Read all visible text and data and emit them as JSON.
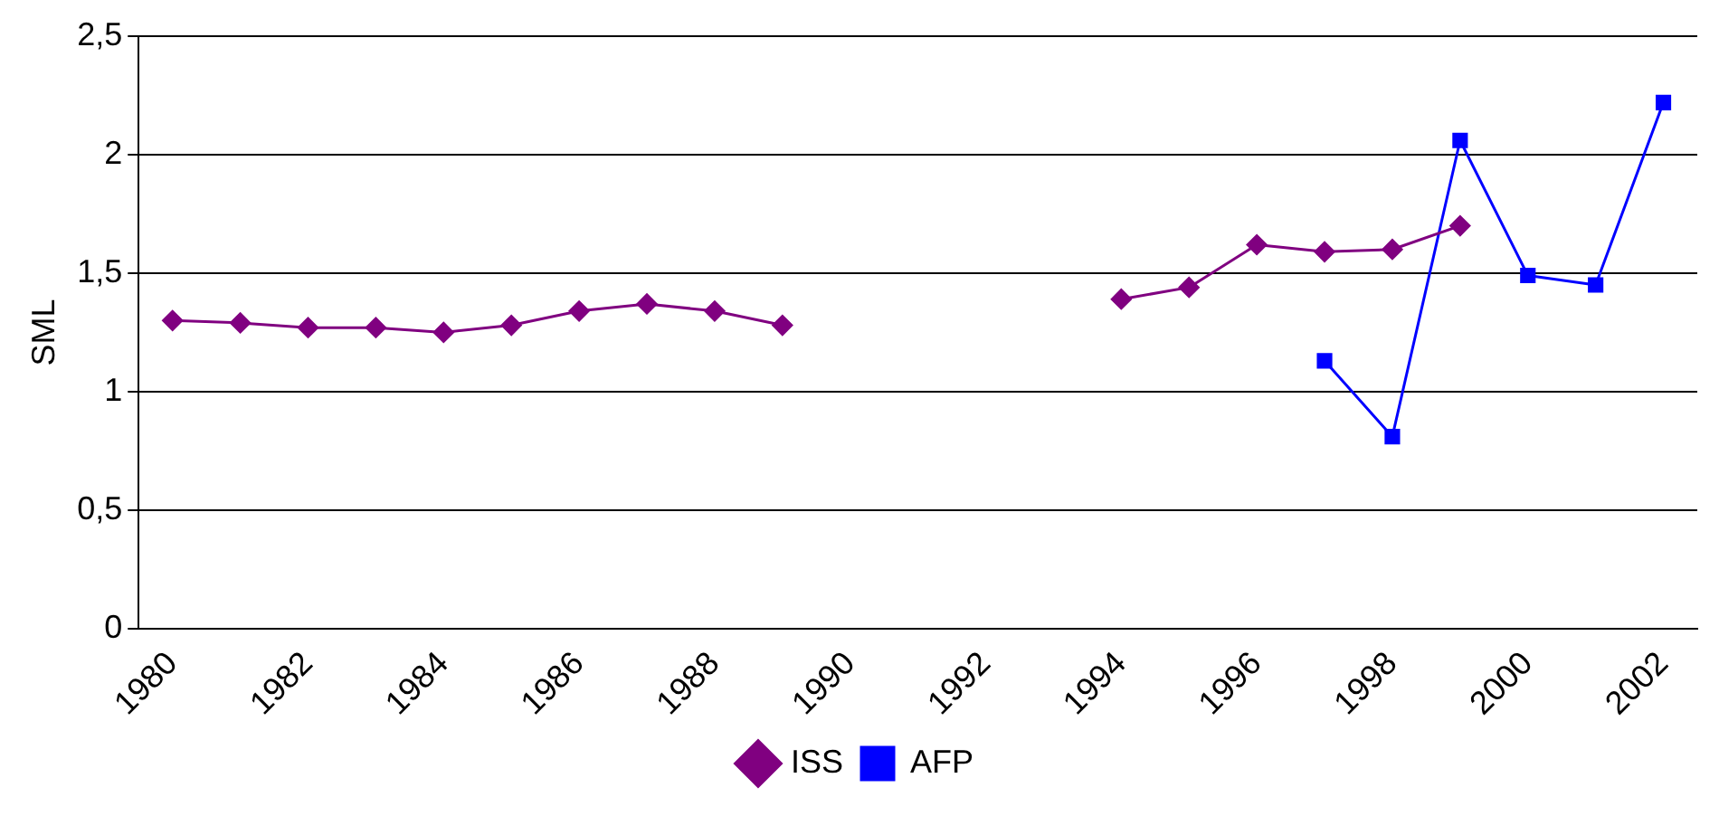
{
  "chart_data": {
    "type": "line",
    "ylabel": "SML",
    "categories": [
      "1980",
      null,
      "1982",
      null,
      "1984",
      null,
      "1986",
      null,
      "1988",
      null,
      "1990",
      null,
      "1992",
      null,
      "1994",
      null,
      "1996",
      null,
      "1998",
      null,
      "2000",
      null,
      "2002"
    ],
    "series": [
      {
        "name": "ISS",
        "color": "#800080",
        "marker": "diamond",
        "values": [
          1.3,
          1.29,
          1.27,
          1.27,
          1.25,
          1.28,
          1.34,
          1.37,
          1.34,
          1.28,
          null,
          null,
          null,
          null,
          1.39,
          1.44,
          1.62,
          1.59,
          1.6,
          1.7,
          null,
          null,
          null
        ]
      },
      {
        "name": "AFP",
        "color": "#0000ff",
        "marker": "square",
        "values": [
          null,
          null,
          null,
          null,
          null,
          null,
          null,
          null,
          null,
          null,
          null,
          null,
          null,
          null,
          null,
          null,
          null,
          1.13,
          0.81,
          2.06,
          1.49,
          1.45,
          2.22
        ]
      }
    ],
    "ylim": [
      0,
      2.5
    ],
    "yticks": [
      {
        "value": 0,
        "label": "0"
      },
      {
        "value": 0.5,
        "label": "0,5"
      },
      {
        "value": 1,
        "label": "1"
      },
      {
        "value": 1.5,
        "label": "1,5"
      },
      {
        "value": 2,
        "label": "2"
      },
      {
        "value": 2.5,
        "label": "2,5"
      }
    ],
    "grid": "y",
    "legend": "bottom",
    "line_style": "solid"
  }
}
